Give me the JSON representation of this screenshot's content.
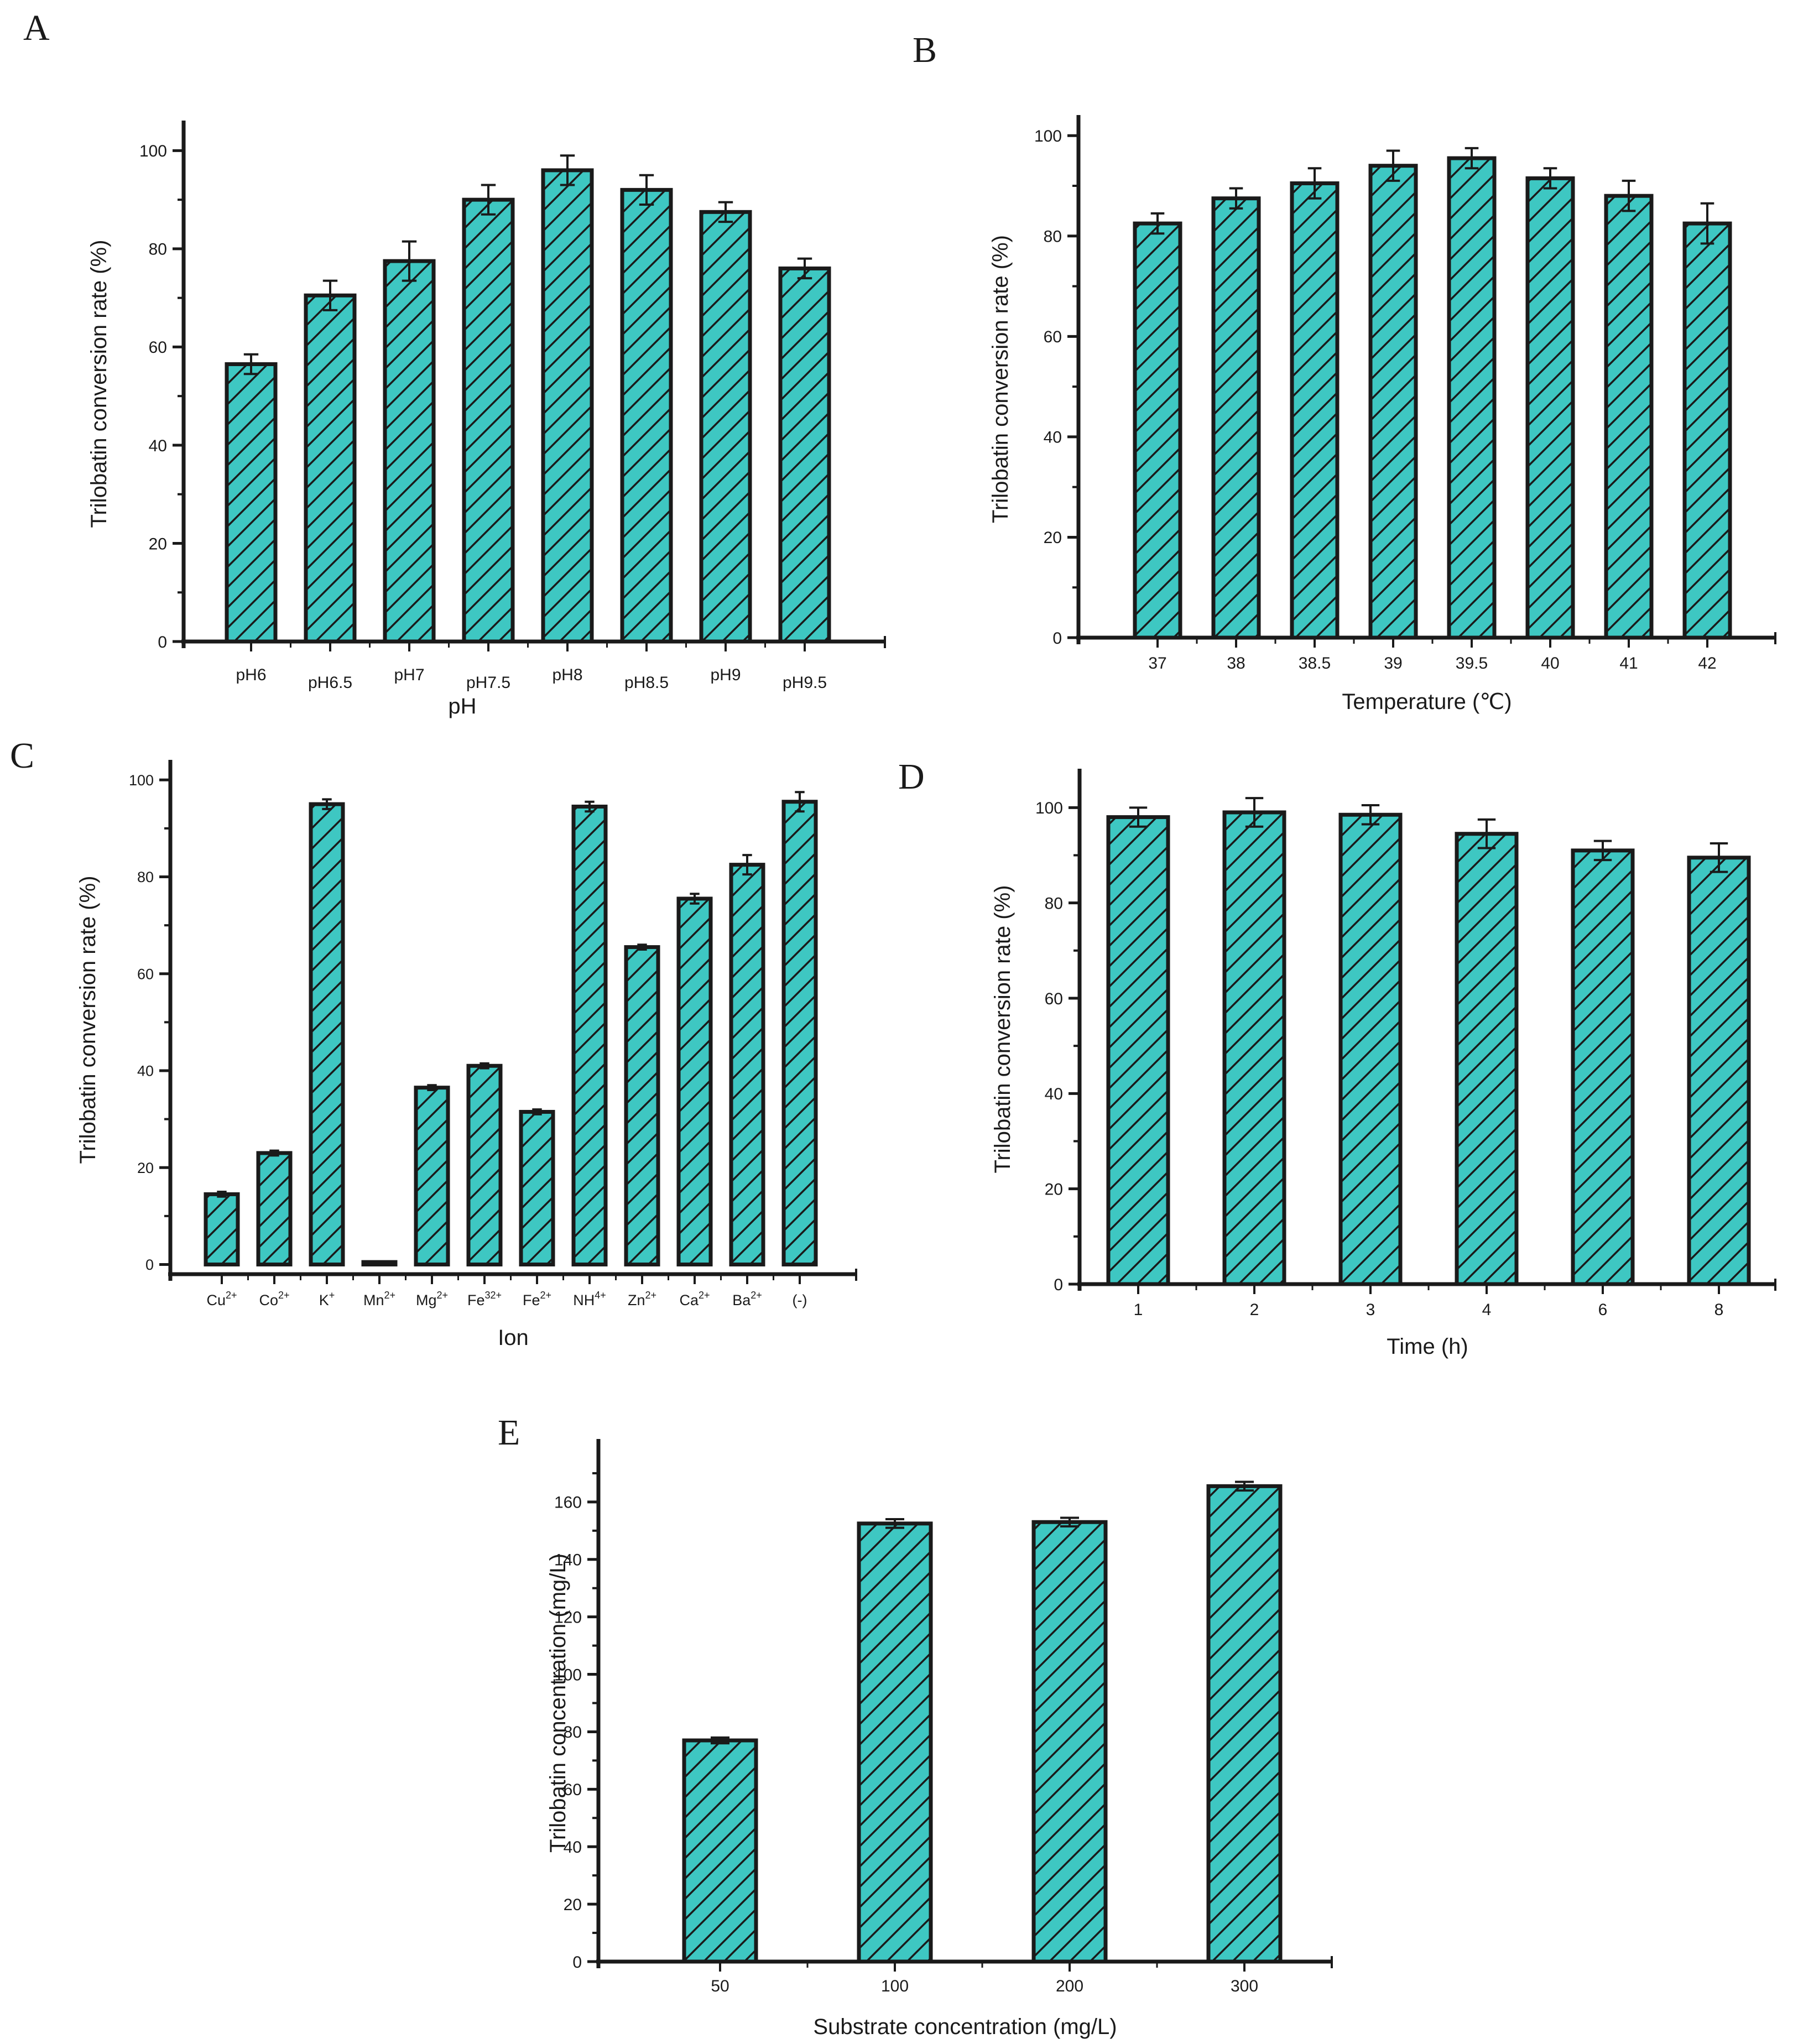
{
  "colors": {
    "bar_fill": "#3ec7c2",
    "hatch": "#1a1a1a",
    "axis": "#1a1a1a",
    "background": "#ffffff"
  },
  "chart_data": [
    {
      "panel": "A",
      "type": "bar",
      "categories": [
        "pH6",
        "pH6.5",
        "pH7",
        "pH7.5",
        "pH8",
        "pH8.5",
        "pH9",
        "pH9.5"
      ],
      "values": [
        56.5,
        70.5,
        77.5,
        90,
        96,
        92,
        87.5,
        76
      ],
      "errors": [
        2,
        3,
        4,
        3,
        3,
        3,
        2,
        2
      ],
      "xlabel": "pH",
      "ylabel": "Trilobatin conversion rate (%)",
      "ylim": [
        0,
        105
      ],
      "yticks": [
        0,
        20,
        40,
        60,
        80,
        100
      ]
    },
    {
      "panel": "B",
      "type": "bar",
      "categories": [
        "37",
        "38",
        "38.5",
        "39",
        "39.5",
        "40",
        "41",
        "42"
      ],
      "values": [
        82.5,
        87.5,
        90.5,
        94,
        95.5,
        91.5,
        88,
        82.5
      ],
      "errors": [
        2,
        2,
        3,
        3,
        2,
        2,
        3,
        4
      ],
      "xlabel": "Temperature (℃)",
      "ylabel": "Trilobatin conversion rate (%)",
      "ylim": [
        0,
        103
      ],
      "yticks": [
        0,
        20,
        40,
        60,
        80,
        100
      ]
    },
    {
      "panel": "C",
      "type": "bar",
      "categories": [
        {
          "base": "Cu",
          "sup": "2+"
        },
        {
          "base": "Co",
          "sup": "2+"
        },
        {
          "base": "K",
          "sup": "+"
        },
        {
          "base": "Mn",
          "sup": "2+"
        },
        {
          "base": "Mg",
          "sup": "2+"
        },
        {
          "base": "Fe",
          "sup": "32+"
        },
        {
          "base": "Fe",
          "sup": "2+"
        },
        {
          "base": "NH",
          "sup": "4+"
        },
        {
          "base": "Zn",
          "sup": "2+"
        },
        {
          "base": "Ca",
          "sup": "2+"
        },
        {
          "base": "Ba",
          "sup": "2+"
        },
        {
          "base": "(-)",
          "sup": ""
        }
      ],
      "values": [
        14.5,
        23,
        95,
        0.5,
        36.5,
        41,
        31.5,
        94.5,
        65.5,
        75.5,
        82.5,
        95.5
      ],
      "errors": [
        0.5,
        0.5,
        1,
        0,
        0.5,
        0.5,
        0.5,
        1,
        0.5,
        1,
        2,
        2
      ],
      "xlabel": "Ion",
      "ylabel": "Trilobatin conversion rate (%)",
      "ylim": [
        -2,
        103
      ],
      "yticks": [
        0,
        20,
        40,
        60,
        80,
        100
      ]
    },
    {
      "panel": "D",
      "type": "bar",
      "categories": [
        "1",
        "2",
        "3",
        "4",
        "6",
        "8"
      ],
      "values": [
        98,
        99,
        98.5,
        94.5,
        91,
        89.5
      ],
      "errors": [
        2,
        3,
        2,
        3,
        2,
        3
      ],
      "xlabel": "Time (h)",
      "ylabel": "Trilobatin conversion rate (%)",
      "ylim": [
        0,
        107
      ],
      "yticks": [
        0,
        20,
        40,
        60,
        80,
        100
      ]
    },
    {
      "panel": "E",
      "type": "bar",
      "categories": [
        "50",
        "100",
        "200",
        "300"
      ],
      "values": [
        77,
        152.5,
        153,
        165.5
      ],
      "errors": [
        1,
        1.5,
        1.5,
        1.5
      ],
      "xlabel": "Substrate concentration (mg/L)",
      "ylabel": "Trilobatin concentration (mg/L)",
      "ylim": [
        0,
        180
      ],
      "yticks": [
        0,
        20,
        40,
        60,
        80,
        100,
        120,
        140,
        160
      ]
    }
  ]
}
